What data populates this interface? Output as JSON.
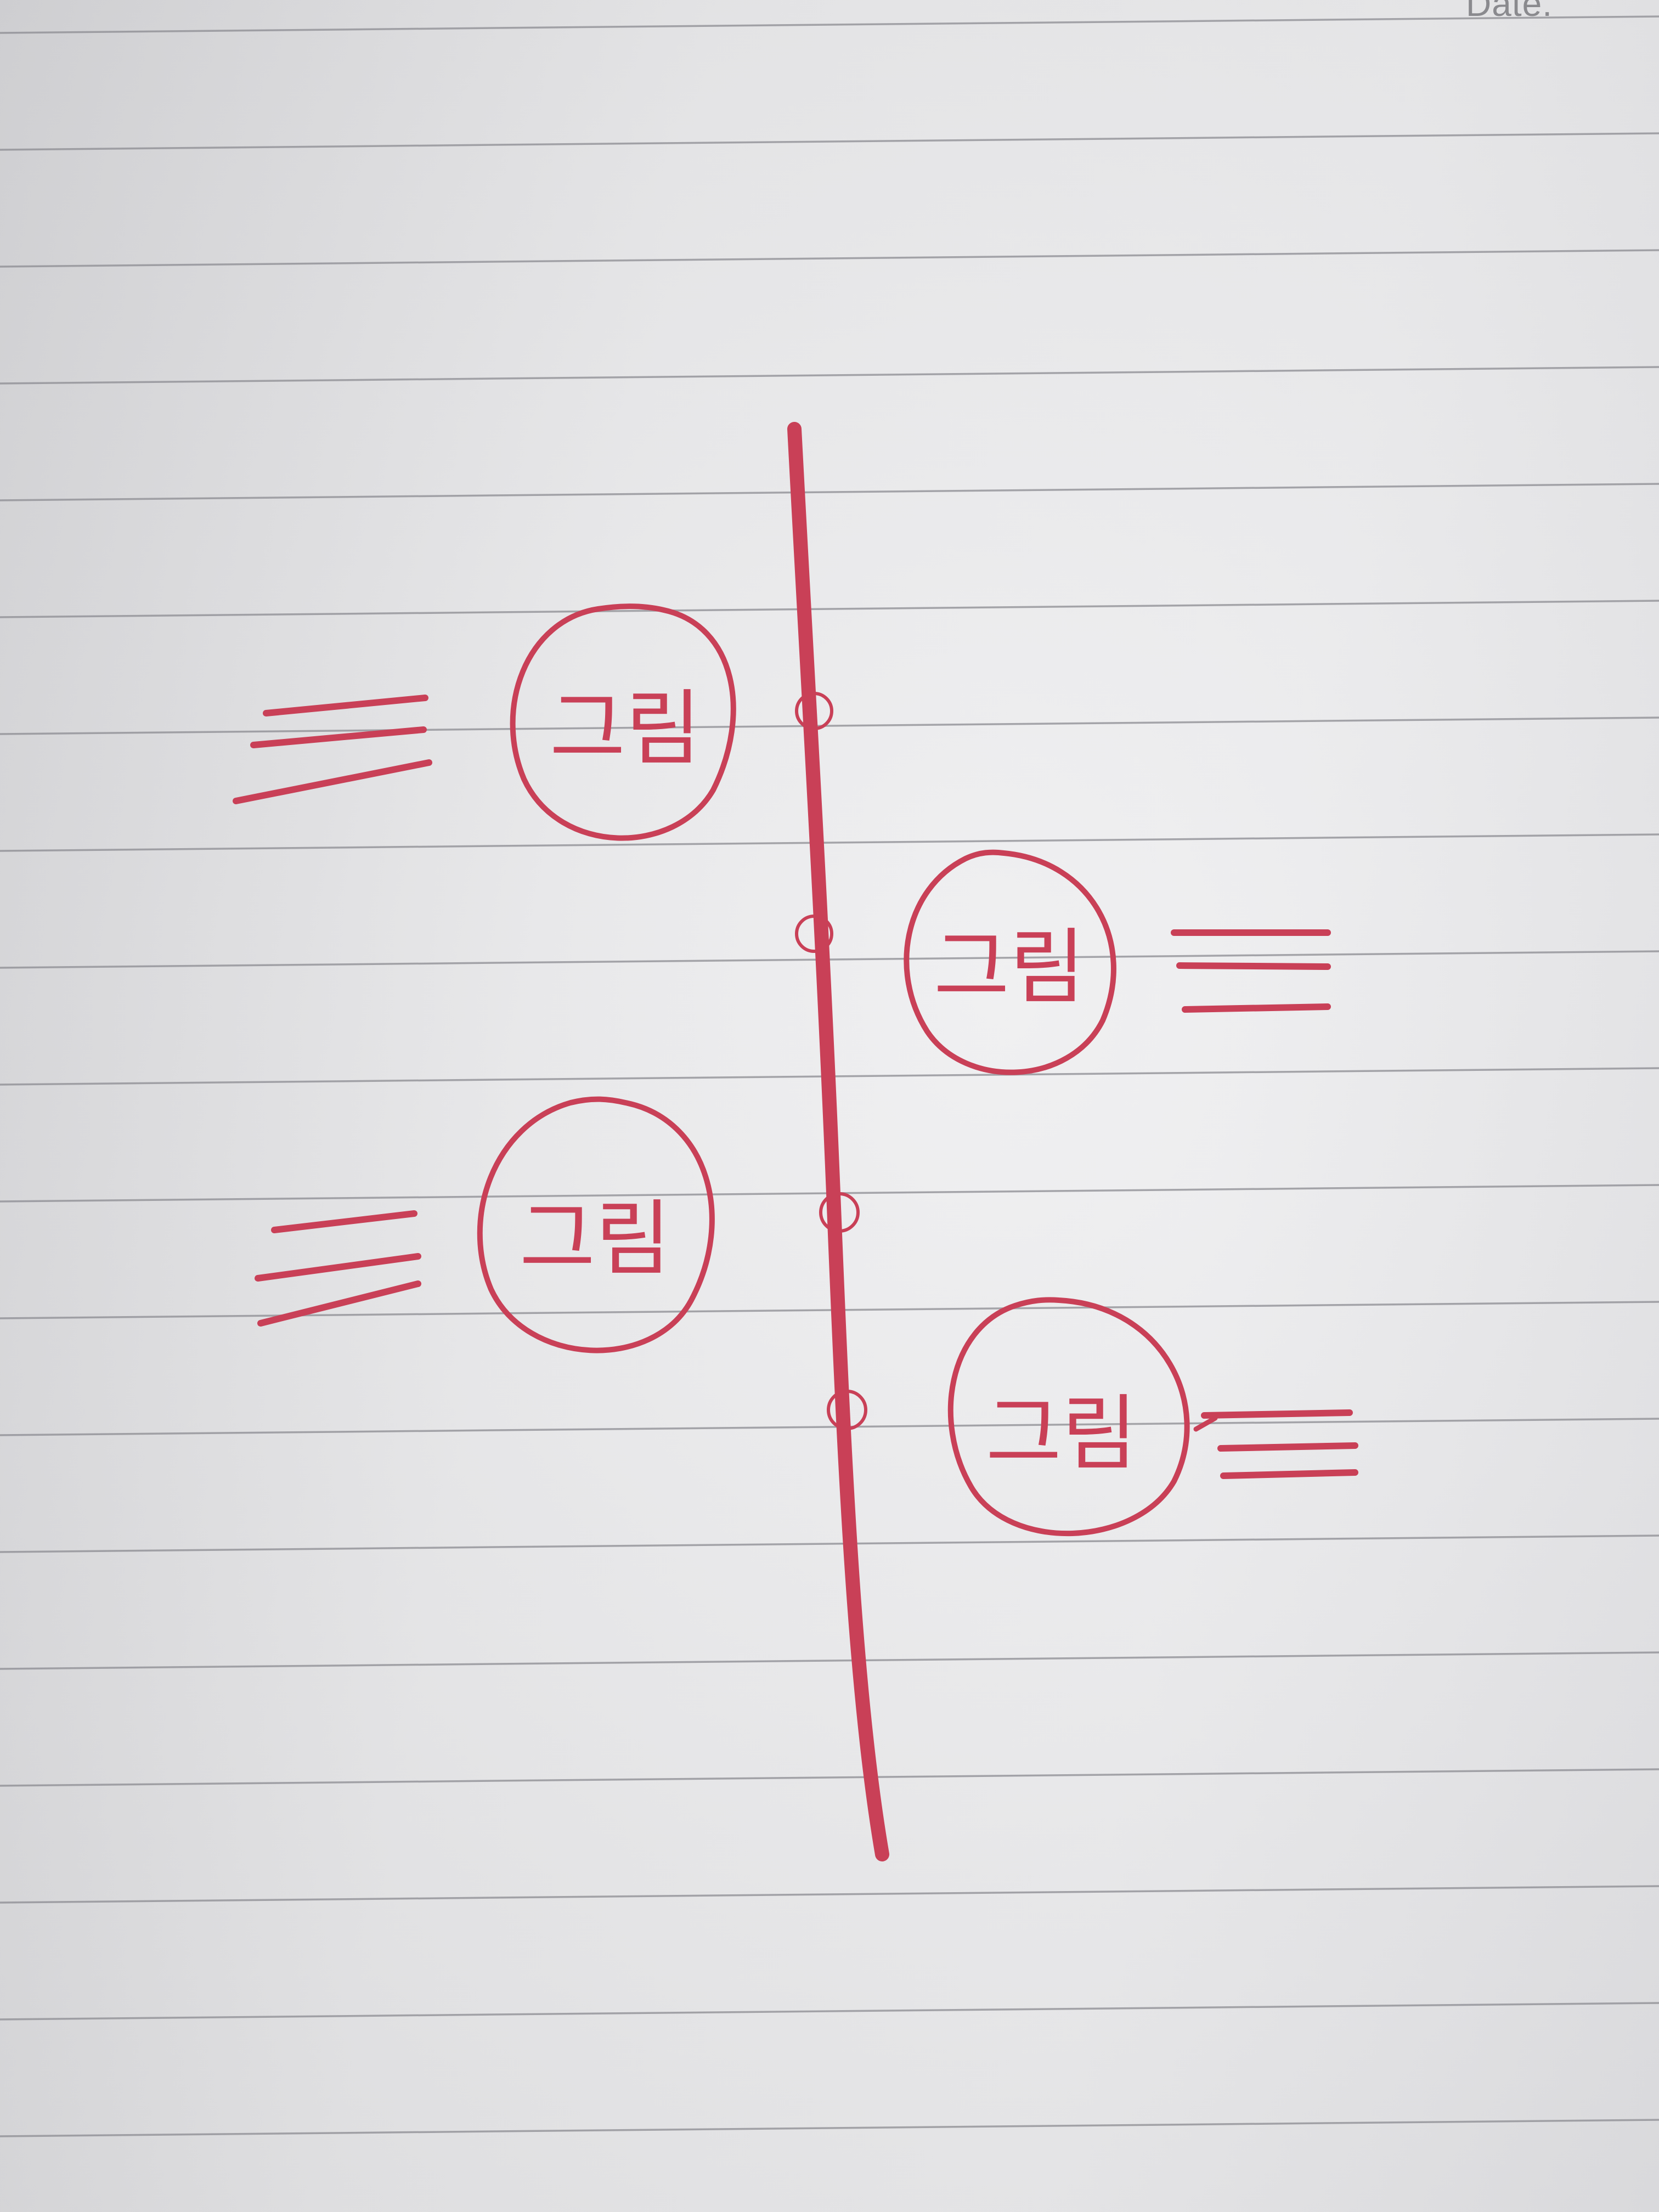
{
  "header": {
    "date_label": "Date."
  },
  "diagram": {
    "type": "timeline",
    "ink_color": "#c94057",
    "ruled_line_color": "#8c8c92",
    "events": [
      {
        "label": "그림",
        "side": "left",
        "text_lines": 3
      },
      {
        "label": "그림",
        "side": "right",
        "text_lines": 3
      },
      {
        "label": "그림",
        "side": "left",
        "text_lines": 3
      },
      {
        "label": "그림",
        "side": "right",
        "text_lines": 3
      }
    ]
  }
}
